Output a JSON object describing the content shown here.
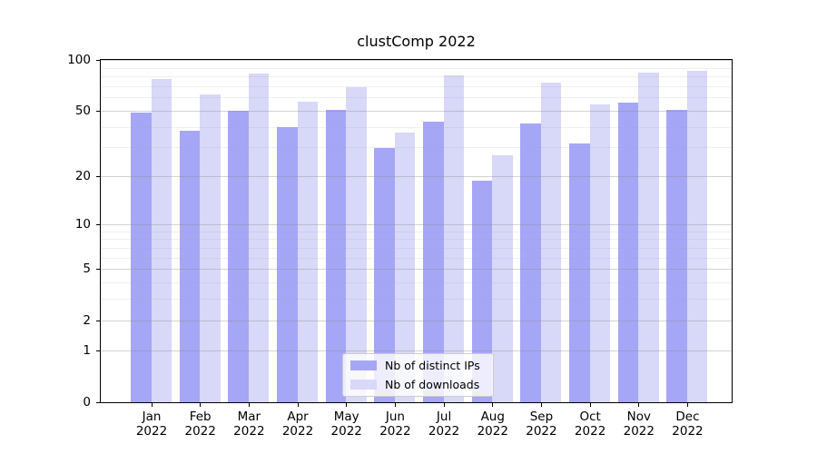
{
  "title": "clustComp 2022",
  "chart_data": {
    "type": "bar",
    "title": "clustComp 2022",
    "categories": [
      "Jan",
      "Feb",
      "Mar",
      "Apr",
      "May",
      "Jun",
      "Jul",
      "Aug",
      "Sep",
      "Oct",
      "Nov",
      "Dec"
    ],
    "year": "2022",
    "series": [
      {
        "name": "Nb of distinct IPs",
        "color": "#a6a6f7",
        "values": [
          49,
          38,
          50,
          40,
          51,
          30,
          43,
          19,
          42,
          32,
          56,
          51
        ]
      },
      {
        "name": "Nb of downloads",
        "color": "#d8d8f8",
        "values": [
          78,
          63,
          84,
          57,
          69,
          37,
          82,
          27,
          74,
          55,
          85,
          87
        ]
      }
    ],
    "xlabel": "",
    "ylabel": "",
    "yscale": "log1p",
    "ylim": [
      0,
      100
    ],
    "yticks": [
      0,
      1,
      2,
      5,
      10,
      20,
      50,
      100
    ],
    "yticks_minor": [
      3,
      4,
      6,
      7,
      8,
      9,
      30,
      40,
      60,
      70,
      80,
      90
    ],
    "grid": "both",
    "grid_over_bars": true,
    "legend_position": "lower center",
    "colors": {
      "major_grid": "rgba(140,140,140,0.38)",
      "minor_grid": "rgba(160,160,160,0.16)",
      "axis": "#000000",
      "background": "#ffffff"
    }
  }
}
